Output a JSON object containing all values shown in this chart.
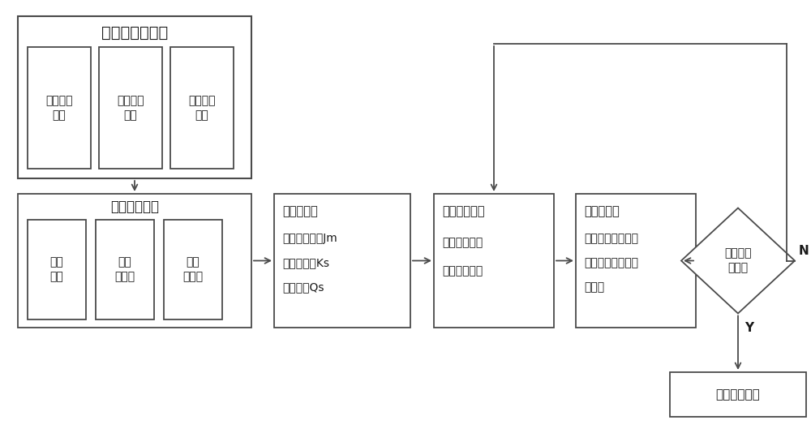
{
  "bg_color": "#ffffff",
  "border_color": "#4a4a4a",
  "text_color": "#1a1a1a",
  "title": "系统动力学模型",
  "box1_title": "机械转向\n模块",
  "box2_title": "电动助力\n模块",
  "box3_title": "液压助力\n模块",
  "perf_outer_title": "性能评价指标",
  "perf1": "转向\n路感",
  "perf2": "转向\n灵敏度",
  "perf3": "系统\n稳定性",
  "param_title": "选取参数：",
  "param_line1": "电机转动惯量Jm",
  "param_line2": "转矩传感器Ks",
  "param_line3": "油泵流量Qs",
  "multi_title": "多目标优化：",
  "multi_line1": "设置优化变量",
  "multi_line2": "设置边界条件",
  "algo_title": "优化算法：",
  "algo_line1": "采用基于模拟退火",
  "algo_line2": "算法的改进多岛遗",
  "algo_line3": "传算法",
  "diamond_text": "是否满足\n条件？",
  "output_text": "输出优化结果",
  "N_label": "N",
  "Y_label": "Y",
  "figsize": [
    10.0,
    5.34
  ],
  "dpi": 100
}
